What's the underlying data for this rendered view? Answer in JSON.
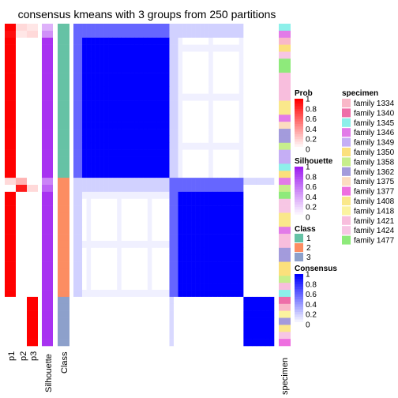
{
  "chart_data": {
    "type": "heatmap",
    "title": "consensus kmeans with 3 groups from 250 partitions",
    "groups": [
      {
        "class": 1,
        "size": 22,
        "prob": [
          [
            1.0,
            0.15,
            0.1
          ],
          [
            0.95,
            0.1,
            0.15
          ],
          [
            1,
            0,
            0
          ],
          [
            1,
            0,
            0
          ],
          [
            1,
            0,
            0
          ],
          [
            1,
            0,
            0
          ],
          [
            1,
            0,
            0
          ],
          [
            1,
            0,
            0
          ],
          [
            1,
            0,
            0
          ],
          [
            1,
            0,
            0
          ],
          [
            1,
            0,
            0
          ],
          [
            1,
            0,
            0
          ],
          [
            1,
            0,
            0
          ],
          [
            1,
            0,
            0
          ],
          [
            1,
            0,
            0
          ],
          [
            1,
            0,
            0
          ],
          [
            1,
            0,
            0
          ],
          [
            1,
            0,
            0
          ],
          [
            1,
            0,
            0
          ],
          [
            1,
            0,
            0
          ],
          [
            1,
            0,
            0
          ],
          [
            1,
            0,
            0
          ]
        ],
        "silhouette": [
          0.35,
          0.5,
          0.92,
          0.92,
          0.92,
          0.92,
          0.92,
          0.92,
          0.92,
          0.92,
          0.92,
          0.92,
          0.92,
          0.92,
          0.92,
          0.92,
          0.92,
          0.92,
          0.92,
          0.92,
          0.92,
          0.92
        ]
      },
      {
        "class": 2,
        "size": 17,
        "prob": [
          [
            0.15,
            0.3,
            0
          ],
          [
            0,
            0.9,
            0.15
          ],
          [
            1,
            0,
            0
          ],
          [
            1,
            0,
            0
          ],
          [
            1,
            0,
            0
          ],
          [
            1,
            0,
            0
          ],
          [
            1,
            0,
            0
          ],
          [
            1,
            0,
            0
          ],
          [
            1,
            0,
            0
          ],
          [
            1,
            0,
            0
          ],
          [
            1,
            0,
            0
          ],
          [
            1,
            0,
            0
          ],
          [
            1,
            0,
            0
          ],
          [
            1,
            0,
            0
          ],
          [
            1,
            0,
            0
          ],
          [
            1,
            0,
            0
          ],
          [
            1,
            0,
            0
          ]
        ],
        "silhouette": [
          0.55,
          0.7,
          0.92,
          0.92,
          0.92,
          0.92,
          0.92,
          0.92,
          0.92,
          0.92,
          0.92,
          0.92,
          0.92,
          0.92,
          0.92,
          0.92,
          0.92
        ]
      },
      {
        "class": 3,
        "size": 7,
        "prob": [
          [
            0,
            0,
            1
          ],
          [
            0,
            0,
            1
          ],
          [
            0,
            0,
            1
          ],
          [
            0,
            0,
            1
          ],
          [
            0,
            0,
            1
          ],
          [
            0,
            0,
            1
          ],
          [
            0,
            0,
            1
          ]
        ],
        "silhouette": [
          0.92,
          0.92,
          0.92,
          0.92,
          0.92,
          0.92,
          0.92
        ]
      }
    ],
    "column_labels": [
      "p1",
      "p2",
      "p3",
      "Silhouette",
      "Class",
      "specimen"
    ],
    "class_colors": {
      "1": "#66C2A5",
      "2": "#FC8D62",
      "3": "#8DA0CB"
    },
    "legends": {
      "prob": {
        "title": "Prob",
        "ticks": [
          "1",
          "0.8",
          "0.6",
          "0.4",
          "0.2",
          "0"
        ],
        "color_high": "#FF0000",
        "color_low": "#FFFFFF"
      },
      "silhouette": {
        "title": "Silhouette",
        "ticks": [
          "1",
          "0.8",
          "0.6",
          "0.4",
          "0.2",
          "0"
        ],
        "color_high": "#A020F0",
        "color_low": "#FFFFFF"
      },
      "class": {
        "title": "Class",
        "entries": [
          {
            "label": "1",
            "color": "#66C2A5"
          },
          {
            "label": "2",
            "color": "#FC8D62"
          },
          {
            "label": "3",
            "color": "#8DA0CB"
          }
        ]
      },
      "consensus": {
        "title": "Consensus",
        "ticks": [
          "1",
          "0.8",
          "0.6",
          "0.4",
          "0.2",
          "0"
        ],
        "color_high": "#0000FF",
        "color_low": "#FFFFFF"
      },
      "specimen": {
        "title": "specimen",
        "entries": [
          {
            "label": "family 1334",
            "color": "#F9B8C8"
          },
          {
            "label": "family 1340",
            "color": "#EE6FA8"
          },
          {
            "label": "family 1345",
            "color": "#8DF0EA"
          },
          {
            "label": "family 1346",
            "color": "#E27BE8"
          },
          {
            "label": "family 1349",
            "color": "#C5AEF5"
          },
          {
            "label": "family 1350",
            "color": "#FBE07C"
          },
          {
            "label": "family 1358",
            "color": "#C7EE8C"
          },
          {
            "label": "family 1362",
            "color": "#A39BDC"
          },
          {
            "label": "family 1375",
            "color": "#FCDCC0"
          },
          {
            "label": "family 1377",
            "color": "#EE6FE0"
          },
          {
            "label": "family 1408",
            "color": "#FAE88B"
          },
          {
            "label": "family 1418",
            "color": "#FBF3A0"
          },
          {
            "label": "family 1421",
            "color": "#F8BEDD"
          },
          {
            "label": "family 1424",
            "color": "#F7C6E4"
          },
          {
            "label": "family 1477",
            "color": "#8EEA7B"
          }
        ]
      }
    },
    "specimen_sequence": [
      "family 1345",
      "family 1346",
      "family 1334",
      "family 1350",
      "family 1424",
      "family 1477",
      "family 1477",
      "family 1421",
      "family 1421",
      "family 1421",
      "family 1421",
      "family 1408",
      "family 1408",
      "family 1346",
      "family 1375",
      "family 1362",
      "family 1362",
      "family 1358",
      "family 1349",
      "family 1349",
      "family 1345",
      "family 1350",
      "family 1346",
      "family 1358",
      "family 1477",
      "family 1424",
      "family 1424",
      "family 1408",
      "family 1408",
      "family 1346",
      "family 1421",
      "family 1421",
      "family 1362",
      "family 1362",
      "family 1350",
      "family 1350",
      "family 1358",
      "family 1421",
      "family 1345",
      "family 1340",
      "family 1334",
      "family 1418",
      "family 1362",
      "family 1408",
      "family 1424",
      "family 1377"
    ]
  }
}
